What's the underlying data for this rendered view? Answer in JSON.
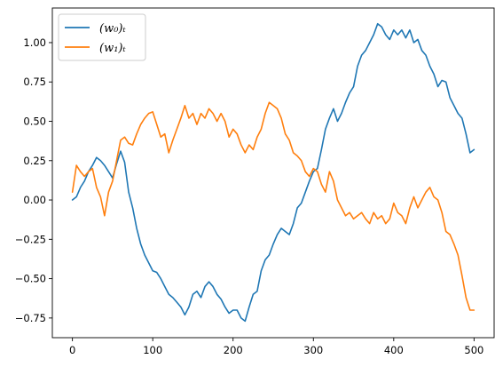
{
  "chart_data": {
    "type": "line",
    "title": "",
    "xlabel": "",
    "ylabel": "",
    "xlim": [
      -25,
      525
    ],
    "ylim": [
      -0.875,
      1.22
    ],
    "xticks": [
      0,
      100,
      200,
      300,
      400,
      500
    ],
    "xtick_labels": [
      "0",
      "100",
      "200",
      "300",
      "400",
      "500"
    ],
    "yticks": [
      -0.75,
      -0.5,
      -0.25,
      0.0,
      0.25,
      0.5,
      0.75,
      1.0
    ],
    "ytick_labels": [
      "−0.75",
      "−0.50",
      "−0.25",
      "0.00",
      "0.25",
      "0.50",
      "0.75",
      "1.00"
    ],
    "grid": false,
    "legend_position": "top-left",
    "series": [
      {
        "name": "(w₀)ₜ",
        "color": "#1f77b4",
        "points": [
          [
            0,
            0.0
          ],
          [
            5,
            0.02
          ],
          [
            10,
            0.08
          ],
          [
            15,
            0.12
          ],
          [
            20,
            0.18
          ],
          [
            25,
            0.22
          ],
          [
            30,
            0.27
          ],
          [
            35,
            0.25
          ],
          [
            40,
            0.22
          ],
          [
            45,
            0.18
          ],
          [
            50,
            0.14
          ],
          [
            55,
            0.23
          ],
          [
            60,
            0.31
          ],
          [
            65,
            0.24
          ],
          [
            70,
            0.05
          ],
          [
            75,
            -0.05
          ],
          [
            80,
            -0.18
          ],
          [
            85,
            -0.28
          ],
          [
            90,
            -0.35
          ],
          [
            95,
            -0.4
          ],
          [
            100,
            -0.45
          ],
          [
            105,
            -0.46
          ],
          [
            110,
            -0.5
          ],
          [
            115,
            -0.55
          ],
          [
            120,
            -0.6
          ],
          [
            125,
            -0.62
          ],
          [
            130,
            -0.65
          ],
          [
            135,
            -0.68
          ],
          [
            140,
            -0.73
          ],
          [
            145,
            -0.68
          ],
          [
            150,
            -0.6
          ],
          [
            155,
            -0.58
          ],
          [
            160,
            -0.62
          ],
          [
            165,
            -0.55
          ],
          [
            170,
            -0.52
          ],
          [
            175,
            -0.55
          ],
          [
            180,
            -0.6
          ],
          [
            185,
            -0.63
          ],
          [
            190,
            -0.68
          ],
          [
            195,
            -0.72
          ],
          [
            200,
            -0.7
          ],
          [
            205,
            -0.7
          ],
          [
            210,
            -0.75
          ],
          [
            215,
            -0.77
          ],
          [
            220,
            -0.68
          ],
          [
            225,
            -0.6
          ],
          [
            230,
            -0.58
          ],
          [
            235,
            -0.45
          ],
          [
            240,
            -0.38
          ],
          [
            245,
            -0.35
          ],
          [
            250,
            -0.28
          ],
          [
            255,
            -0.22
          ],
          [
            260,
            -0.18
          ],
          [
            265,
            -0.2
          ],
          [
            270,
            -0.22
          ],
          [
            275,
            -0.15
          ],
          [
            280,
            -0.05
          ],
          [
            285,
            -0.02
          ],
          [
            290,
            0.05
          ],
          [
            295,
            0.12
          ],
          [
            300,
            0.18
          ],
          [
            305,
            0.2
          ],
          [
            310,
            0.32
          ],
          [
            315,
            0.45
          ],
          [
            320,
            0.52
          ],
          [
            325,
            0.58
          ],
          [
            330,
            0.5
          ],
          [
            335,
            0.55
          ],
          [
            340,
            0.62
          ],
          [
            345,
            0.68
          ],
          [
            350,
            0.72
          ],
          [
            355,
            0.85
          ],
          [
            360,
            0.92
          ],
          [
            365,
            0.95
          ],
          [
            370,
            1.0
          ],
          [
            375,
            1.05
          ],
          [
            380,
            1.12
          ],
          [
            385,
            1.1
          ],
          [
            390,
            1.05
          ],
          [
            395,
            1.02
          ],
          [
            400,
            1.08
          ],
          [
            405,
            1.05
          ],
          [
            410,
            1.08
          ],
          [
            415,
            1.03
          ],
          [
            420,
            1.08
          ],
          [
            425,
            1.0
          ],
          [
            430,
            1.02
          ],
          [
            435,
            0.95
          ],
          [
            440,
            0.92
          ],
          [
            445,
            0.85
          ],
          [
            450,
            0.8
          ],
          [
            455,
            0.72
          ],
          [
            460,
            0.76
          ],
          [
            465,
            0.75
          ],
          [
            470,
            0.65
          ],
          [
            475,
            0.6
          ],
          [
            480,
            0.55
          ],
          [
            485,
            0.52
          ],
          [
            490,
            0.42
          ],
          [
            495,
            0.3
          ],
          [
            500,
            0.32
          ]
        ]
      },
      {
        "name": "(w₁)ₜ",
        "color": "#ff7f0e",
        "points": [
          [
            0,
            0.05
          ],
          [
            5,
            0.22
          ],
          [
            10,
            0.18
          ],
          [
            15,
            0.15
          ],
          [
            20,
            0.18
          ],
          [
            25,
            0.2
          ],
          [
            30,
            0.08
          ],
          [
            35,
            0.02
          ],
          [
            40,
            -0.1
          ],
          [
            45,
            0.05
          ],
          [
            50,
            0.12
          ],
          [
            55,
            0.25
          ],
          [
            60,
            0.38
          ],
          [
            65,
            0.4
          ],
          [
            70,
            0.36
          ],
          [
            75,
            0.35
          ],
          [
            80,
            0.42
          ],
          [
            85,
            0.48
          ],
          [
            90,
            0.52
          ],
          [
            95,
            0.55
          ],
          [
            100,
            0.56
          ],
          [
            105,
            0.48
          ],
          [
            110,
            0.4
          ],
          [
            115,
            0.42
          ],
          [
            120,
            0.3
          ],
          [
            125,
            0.38
          ],
          [
            130,
            0.45
          ],
          [
            135,
            0.52
          ],
          [
            140,
            0.6
          ],
          [
            145,
            0.52
          ],
          [
            150,
            0.55
          ],
          [
            155,
            0.48
          ],
          [
            160,
            0.55
          ],
          [
            165,
            0.52
          ],
          [
            170,
            0.58
          ],
          [
            175,
            0.55
          ],
          [
            180,
            0.5
          ],
          [
            185,
            0.55
          ],
          [
            190,
            0.5
          ],
          [
            195,
            0.4
          ],
          [
            200,
            0.45
          ],
          [
            205,
            0.42
          ],
          [
            210,
            0.35
          ],
          [
            215,
            0.3
          ],
          [
            220,
            0.35
          ],
          [
            225,
            0.32
          ],
          [
            230,
            0.4
          ],
          [
            235,
            0.45
          ],
          [
            240,
            0.55
          ],
          [
            245,
            0.62
          ],
          [
            250,
            0.6
          ],
          [
            255,
            0.58
          ],
          [
            260,
            0.52
          ],
          [
            265,
            0.42
          ],
          [
            270,
            0.38
          ],
          [
            275,
            0.3
          ],
          [
            280,
            0.28
          ],
          [
            285,
            0.25
          ],
          [
            290,
            0.18
          ],
          [
            295,
            0.15
          ],
          [
            300,
            0.2
          ],
          [
            305,
            0.18
          ],
          [
            310,
            0.1
          ],
          [
            315,
            0.05
          ],
          [
            320,
            0.18
          ],
          [
            325,
            0.12
          ],
          [
            330,
            0.0
          ],
          [
            335,
            -0.05
          ],
          [
            340,
            -0.1
          ],
          [
            345,
            -0.08
          ],
          [
            350,
            -0.12
          ],
          [
            355,
            -0.1
          ],
          [
            360,
            -0.08
          ],
          [
            365,
            -0.12
          ],
          [
            370,
            -0.15
          ],
          [
            375,
            -0.08
          ],
          [
            380,
            -0.12
          ],
          [
            385,
            -0.1
          ],
          [
            390,
            -0.15
          ],
          [
            395,
            -0.12
          ],
          [
            400,
            -0.02
          ],
          [
            405,
            -0.08
          ],
          [
            410,
            -0.1
          ],
          [
            415,
            -0.15
          ],
          [
            420,
            -0.05
          ],
          [
            425,
            0.02
          ],
          [
            430,
            -0.05
          ],
          [
            435,
            0.0
          ],
          [
            440,
            0.05
          ],
          [
            445,
            0.08
          ],
          [
            450,
            0.02
          ],
          [
            455,
            0.0
          ],
          [
            460,
            -0.08
          ],
          [
            465,
            -0.2
          ],
          [
            470,
            -0.22
          ],
          [
            475,
            -0.28
          ],
          [
            480,
            -0.35
          ],
          [
            485,
            -0.48
          ],
          [
            490,
            -0.62
          ],
          [
            495,
            -0.7
          ],
          [
            500,
            -0.7
          ]
        ]
      }
    ]
  }
}
